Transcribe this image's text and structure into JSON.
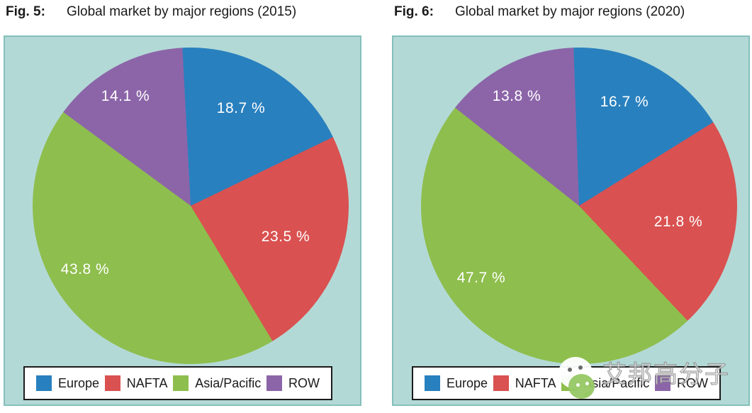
{
  "panel": {
    "background": "#b3d9d6",
    "border": "#84bfbb"
  },
  "legend_box": {
    "background": "#ffffff",
    "border": "#1b1b1b"
  },
  "watermark": {
    "text": "艾邦高分子",
    "icon": "wechat-icon"
  },
  "chart_data": [
    {
      "type": "pie",
      "fig_label": "Fig. 5:",
      "title": "Global market by major regions (2015)",
      "categories": [
        "Europe",
        "NAFTA",
        "Asia/Pacific",
        "ROW"
      ],
      "values": [
        18.7,
        23.5,
        43.8,
        14.1
      ],
      "display_labels": [
        "18.7 %",
        "23.5 %",
        "43.8 %",
        "14.1 %"
      ],
      "slice_colors": [
        "#2980be",
        "#d95150",
        "#8ebe4d",
        "#8c65a9"
      ],
      "start_angle_deg": -3,
      "label_color": "#ffffff",
      "legend_position": "bottom"
    },
    {
      "type": "pie",
      "fig_label": "Fig. 6:",
      "title": "Global market by major regions (2020)",
      "categories": [
        "Europe",
        "NAFTA",
        "Asia/Pacific",
        "ROW"
      ],
      "values": [
        16.7,
        21.8,
        47.7,
        13.8
      ],
      "display_labels": [
        "16.7 %",
        "21.8 %",
        "47.7 %",
        "13.8 %"
      ],
      "slice_colors": [
        "#2980be",
        "#d95150",
        "#8ebe4d",
        "#8c65a9"
      ],
      "start_angle_deg": -2,
      "label_color": "#ffffff",
      "legend_position": "bottom"
    }
  ]
}
